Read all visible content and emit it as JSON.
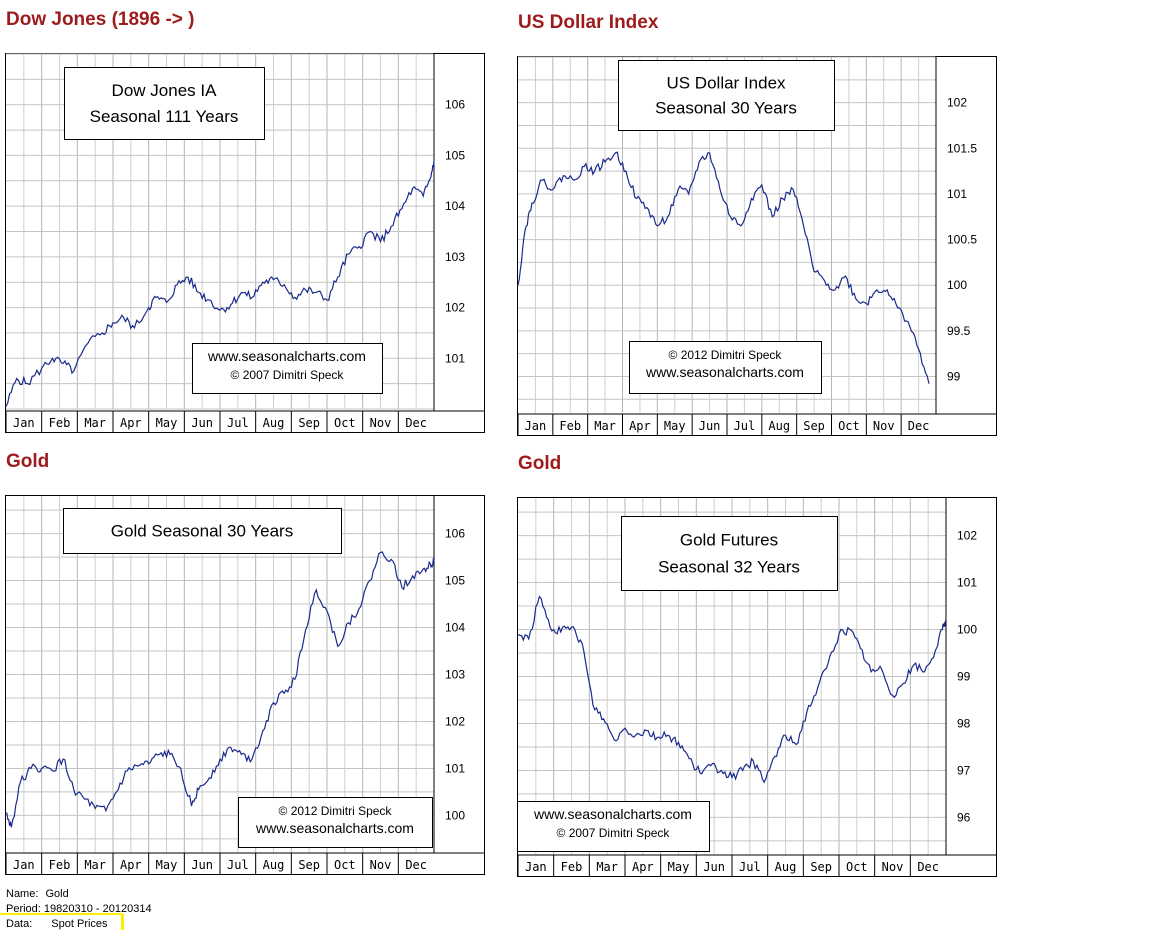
{
  "headings": {
    "dow": "Dow Jones (1896 -> )",
    "usd": "US Dollar Index",
    "gold1": "Gold",
    "gold2": "Gold"
  },
  "chart_data": [
    {
      "id": "dow",
      "type": "line",
      "title_lines": [
        "Dow Jones IA",
        "Seasonal 111 Years"
      ],
      "credit_lines": [
        "www.seasonalcharts.com",
        "© 2007  Dimitri Speck"
      ],
      "months": [
        "Jan",
        "Feb",
        "Mar",
        "Apr",
        "May",
        "Jun",
        "Jul",
        "Aug",
        "Sep",
        "Oct",
        "Nov",
        "Dec"
      ],
      "y_ticks": [
        101,
        102,
        103,
        104,
        105,
        106
      ],
      "ylim": [
        100.0,
        107.0
      ],
      "grid": true,
      "line_color": "#1a2a8c",
      "series": [
        {
          "x": [
            0,
            0.3,
            0.6,
            1.0,
            1.3,
            1.6,
            1.9,
            2.3,
            2.7,
            3.0,
            3.3,
            3.6,
            4.0,
            4.2,
            4.5,
            4.8,
            5.1,
            5.4,
            5.7,
            6.0,
            6.3,
            6.6,
            6.9,
            7.2,
            7.5,
            7.8,
            8.1,
            8.4,
            8.7,
            9.0,
            9.3,
            9.6,
            9.9,
            10.2,
            10.5,
            10.8,
            11.1,
            11.4,
            11.7,
            11.9,
            12.0
          ],
          "y": [
            100.05,
            100.6,
            100.5,
            100.8,
            101.0,
            100.9,
            100.75,
            101.3,
            101.5,
            101.7,
            101.8,
            101.6,
            102.0,
            102.2,
            102.1,
            102.45,
            102.6,
            102.3,
            102.15,
            101.95,
            102.05,
            102.3,
            102.2,
            102.5,
            102.55,
            102.45,
            102.2,
            102.35,
            102.3,
            102.15,
            102.6,
            103.05,
            103.2,
            103.5,
            103.3,
            103.6,
            103.95,
            104.35,
            104.2,
            104.55,
            104.9
          ]
        }
      ]
    },
    {
      "id": "usd",
      "type": "line",
      "title_lines": [
        "US Dollar Index",
        "Seasonal 30 Years"
      ],
      "credit_lines": [
        "© 2012  Dimitri Speck",
        "www.seasonalcharts.com"
      ],
      "months": [
        "Jan",
        "Feb",
        "Mar",
        "Apr",
        "May",
        "Jun",
        "Jul",
        "Aug",
        "Sep",
        "Oct",
        "Nov",
        "Dec"
      ],
      "y_ticks": [
        99,
        99.5,
        100,
        100.5,
        101,
        101.5,
        102
      ],
      "ylim": [
        98.6,
        102.5
      ],
      "grid": true,
      "line_color": "#1a2a8c",
      "series": [
        {
          "x": [
            0,
            0.2,
            0.4,
            0.7,
            1.0,
            1.3,
            1.6,
            1.9,
            2.2,
            2.5,
            2.8,
            3.1,
            3.4,
            3.7,
            4.0,
            4.3,
            4.6,
            4.9,
            5.2,
            5.5,
            5.8,
            6.1,
            6.4,
            6.7,
            7.0,
            7.3,
            7.6,
            7.9,
            8.2,
            8.5,
            8.8,
            9.1,
            9.4,
            9.7,
            10.0,
            10.3,
            10.6,
            10.9,
            11.2,
            11.5,
            11.8
          ],
          "y": [
            100.0,
            100.6,
            100.9,
            101.15,
            101.05,
            101.2,
            101.15,
            101.3,
            101.25,
            101.35,
            101.45,
            101.25,
            100.95,
            100.85,
            100.65,
            100.75,
            101.05,
            101.0,
            101.35,
            101.45,
            101.05,
            100.75,
            100.65,
            100.95,
            101.1,
            100.75,
            100.95,
            101.05,
            100.65,
            100.15,
            100.05,
            99.95,
            100.1,
            99.85,
            99.8,
            99.95,
            99.95,
            99.75,
            99.6,
            99.3,
            98.92
          ]
        }
      ]
    },
    {
      "id": "gold1",
      "type": "line",
      "title_lines": [
        "Gold Seasonal 30 Years"
      ],
      "credit_lines": [
        "© 2012  Dimitri Speck",
        "www.seasonalcharts.com"
      ],
      "months": [
        "Jan",
        "Feb",
        "Mar",
        "Apr",
        "May",
        "Jun",
        "Jul",
        "Aug",
        "Sep",
        "Oct",
        "Nov",
        "Dec"
      ],
      "y_ticks": [
        100,
        101,
        102,
        103,
        104,
        105,
        106
      ],
      "ylim": [
        99.2,
        106.8
      ],
      "grid": true,
      "line_color": "#1a2a8c",
      "series": [
        {
          "x": [
            0,
            0.15,
            0.4,
            0.7,
            1.0,
            1.3,
            1.6,
            1.9,
            2.2,
            2.5,
            2.8,
            3.1,
            3.4,
            3.7,
            4.0,
            4.3,
            4.6,
            4.9,
            5.2,
            5.4,
            5.7,
            6.0,
            6.3,
            6.6,
            6.9,
            7.2,
            7.5,
            7.8,
            8.1,
            8.4,
            8.7,
            9.0,
            9.3,
            9.6,
            9.9,
            10.2,
            10.5,
            10.8,
            11.1,
            11.4,
            11.7,
            11.9,
            12.0
          ],
          "y": [
            100.05,
            99.75,
            100.7,
            101.0,
            101.0,
            100.95,
            101.2,
            100.55,
            100.35,
            100.15,
            100.1,
            100.5,
            100.95,
            101.05,
            101.1,
            101.3,
            101.3,
            101.0,
            100.2,
            100.55,
            100.8,
            101.2,
            101.45,
            101.3,
            101.2,
            101.8,
            102.4,
            102.6,
            102.9,
            103.95,
            104.8,
            104.35,
            103.6,
            104.1,
            104.4,
            105.0,
            105.6,
            105.45,
            104.85,
            105.1,
            105.25,
            105.35,
            105.4
          ]
        }
      ]
    },
    {
      "id": "gold2",
      "type": "line",
      "title_lines": [
        "Gold Futures",
        "Seasonal 32 Years"
      ],
      "credit_lines": [
        "www.seasonalcharts.com",
        "© 2007   Dimitri Speck"
      ],
      "months": [
        "Jan",
        "Feb",
        "Mar",
        "Apr",
        "May",
        "Jun",
        "Jul",
        "Aug",
        "Sep",
        "Oct",
        "Nov",
        "Dec"
      ],
      "y_ticks": [
        96,
        97,
        98,
        99,
        100,
        101,
        102
      ],
      "ylim": [
        95.2,
        102.8
      ],
      "grid": true,
      "line_color": "#1a2a8c",
      "series": [
        {
          "x": [
            0,
            0.3,
            0.6,
            0.9,
            1.2,
            1.5,
            1.8,
            2.1,
            2.4,
            2.7,
            3.0,
            3.3,
            3.6,
            3.9,
            4.2,
            4.5,
            4.8,
            5.1,
            5.4,
            5.7,
            6.0,
            6.3,
            6.6,
            6.9,
            7.2,
            7.5,
            7.8,
            8.1,
            8.4,
            8.7,
            9.0,
            9.3,
            9.6,
            9.9,
            10.2,
            10.5,
            10.8,
            11.1,
            11.4,
            11.7,
            11.9,
            12.0
          ],
          "y": [
            99.9,
            99.8,
            100.7,
            100.05,
            99.95,
            100.05,
            99.7,
            98.4,
            98.1,
            97.65,
            97.9,
            97.75,
            97.85,
            97.7,
            97.75,
            97.6,
            97.25,
            96.95,
            97.1,
            97.0,
            96.85,
            97.0,
            97.2,
            96.75,
            97.3,
            97.75,
            97.55,
            98.25,
            98.75,
            99.3,
            99.9,
            100.0,
            99.6,
            99.1,
            99.15,
            98.6,
            98.85,
            99.25,
            99.1,
            99.55,
            100.0,
            100.2
          ]
        }
      ]
    }
  ],
  "footer": {
    "name_label": "Name:",
    "name_value": "Gold",
    "period_label": "Period:",
    "period_value": "19820310 - 20120314",
    "data_label": "Data:",
    "data_value": "Spot Prices"
  }
}
